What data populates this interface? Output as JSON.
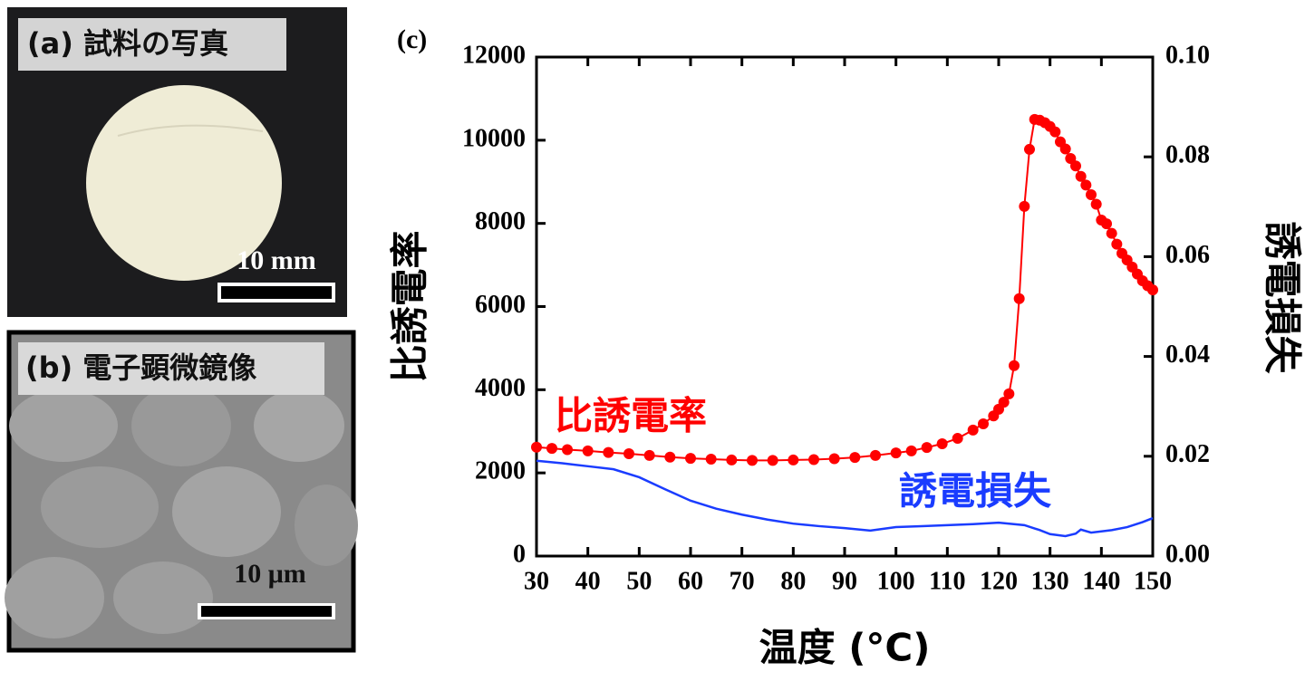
{
  "panels": {
    "a": {
      "label": "(a) 試料の写真",
      "scale": "10 mm"
    },
    "b": {
      "label": "(b) 電子顕微鏡像",
      "scale": "10 μm"
    }
  },
  "chart_data": {
    "type": "line",
    "panel_label": "(c)",
    "x_label": "温度 (°C)",
    "y_label": "比誘電率",
    "y2_label": "誘電損失",
    "xlim": [
      30,
      150
    ],
    "xticks": [
      30,
      40,
      50,
      60,
      70,
      80,
      90,
      100,
      110,
      120,
      130,
      140,
      150
    ],
    "ylim": [
      0,
      12000
    ],
    "yticks": [
      0,
      2000,
      4000,
      6000,
      8000,
      10000,
      12000
    ],
    "y2lim": [
      0,
      0.1
    ],
    "y2ticks": [
      {
        "value": 0,
        "label": "0.00"
      },
      0.02,
      0.04,
      0.06,
      0.08,
      {
        "value": 0.1,
        "label": "0.10"
      }
    ],
    "series": [
      {
        "name": "比誘電率",
        "color": "#ff0000",
        "markers": true,
        "x": [
          30,
          33,
          36,
          40,
          44,
          48,
          52,
          56,
          60,
          64,
          68,
          72,
          76,
          80,
          84,
          88,
          92,
          96,
          100,
          103,
          106,
          109,
          112,
          115,
          117,
          119,
          120,
          121,
          122,
          123,
          124,
          125,
          126,
          127,
          128,
          129,
          130,
          131,
          132,
          133,
          134,
          135,
          136,
          137,
          138,
          139,
          140,
          141,
          142,
          143,
          144,
          145,
          146,
          147,
          148,
          149,
          150
        ],
        "values": [
          2620,
          2590,
          2560,
          2530,
          2490,
          2460,
          2420,
          2380,
          2350,
          2330,
          2310,
          2300,
          2300,
          2310,
          2320,
          2340,
          2370,
          2420,
          2480,
          2530,
          2610,
          2700,
          2830,
          3030,
          3180,
          3370,
          3530,
          3700,
          3900,
          4580,
          6190,
          8410,
          9780,
          10500,
          10480,
          10420,
          10330,
          10200,
          9960,
          9790,
          9560,
          9380,
          9130,
          8920,
          8690,
          8460,
          8080,
          7990,
          7760,
          7500,
          7280,
          7120,
          6950,
          6780,
          6620,
          6500,
          6400
        ]
      },
      {
        "name": "誘電損失",
        "color": "#1a3cff",
        "axis": "y2",
        "markers": false,
        "x": [
          30,
          35,
          40,
          45,
          50,
          55,
          60,
          65,
          70,
          75,
          80,
          85,
          90,
          95,
          100,
          105,
          110,
          115,
          120,
          125,
          128,
          130,
          133,
          135,
          136,
          138,
          142,
          145,
          148,
          150
        ],
        "values": [
          0.0191,
          0.0186,
          0.018,
          0.0174,
          0.0158,
          0.0134,
          0.0111,
          0.0095,
          0.0083,
          0.0073,
          0.0065,
          0.006,
          0.0056,
          0.0051,
          0.0058,
          0.006,
          0.0062,
          0.0064,
          0.0067,
          0.0062,
          0.0052,
          0.0044,
          0.004,
          0.0045,
          0.0053,
          0.0047,
          0.0052,
          0.0058,
          0.0068,
          0.0076
        ]
      }
    ],
    "annotations": [
      {
        "text": "比誘電率",
        "color": "#ff0000"
      },
      {
        "text": "誘電損失",
        "color": "#1a3cff"
      }
    ]
  }
}
